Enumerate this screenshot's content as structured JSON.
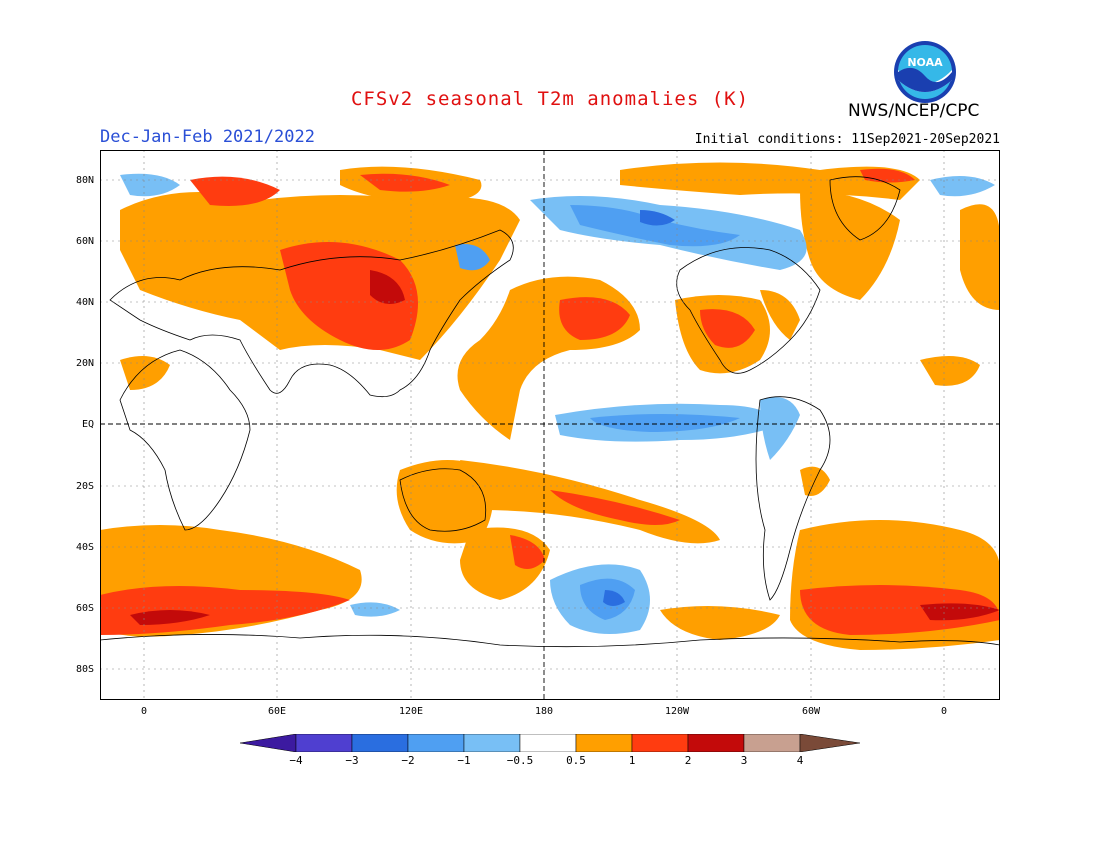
{
  "title": "CFSv2 seasonal T2m anomalies (K)",
  "period": "Dec-Jan-Feb 2021/2022",
  "initial_conditions": "Initial conditions: 11Sep2021-20Sep2021",
  "agency": "NWS/NCEP/CPC",
  "logo_text": "NOAA",
  "colors": {
    "title": "#e01010",
    "period": "#2a4fd6",
    "levels": [
      "#3c1aa0",
      "#4f3fd0",
      "#2a6ee0",
      "#4f9ff2",
      "#78bff5",
      "#ffffff",
      "#ff9f00",
      "#ff3c10",
      "#c30a0a",
      "#c8a090",
      "#7a4a38"
    ]
  },
  "lat_labels": [
    "80N",
    "60N",
    "40N",
    "20N",
    "EQ",
    "20S",
    "40S",
    "60S",
    "80S"
  ],
  "lon_labels": [
    "0",
    "60E",
    "120E",
    "180",
    "120W",
    "60W",
    "0"
  ],
  "colorbar": {
    "labels": [
      "−4",
      "−3",
      "−2",
      "−1",
      "−0.5",
      "0.5",
      "1",
      "2",
      "3",
      "4"
    ]
  }
}
